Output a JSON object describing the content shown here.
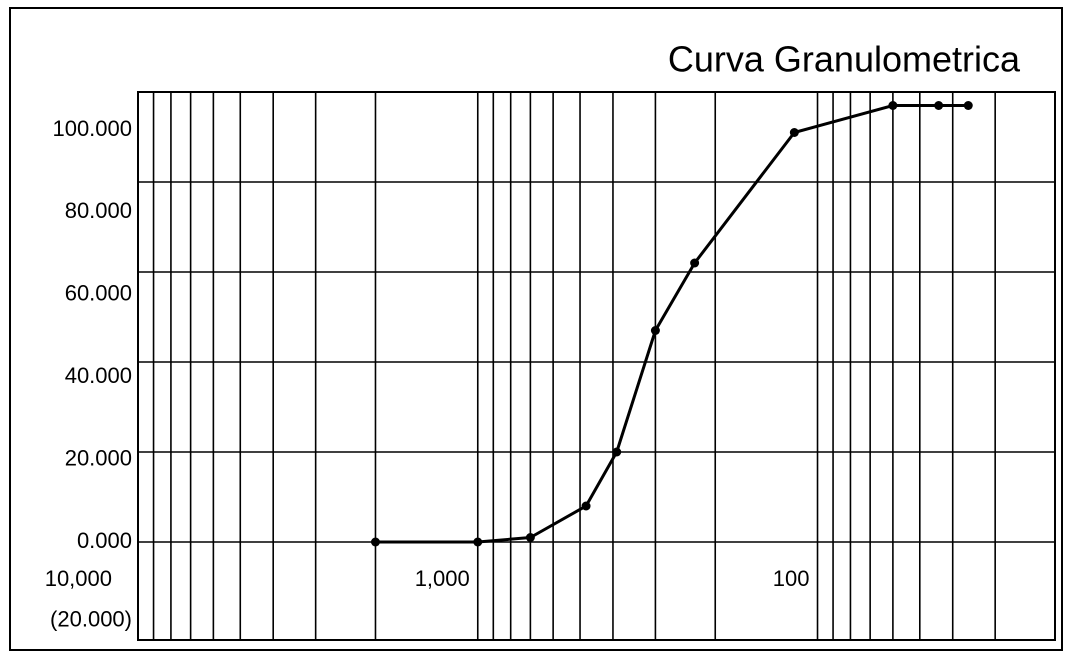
{
  "chart_data": {
    "type": "line",
    "title": "Curva Granulometrica",
    "x": [
      2000,
      1000,
      700,
      480,
      390,
      300,
      230,
      117,
      60,
      44,
      36
    ],
    "series": [
      {
        "color": "#000000",
        "values": [
          0,
          0,
          1,
          8,
          20,
          47,
          62,
          91,
          97,
          97,
          97
        ]
      }
    ],
    "xscale": "log",
    "xreversed": true,
    "xlim": [
      10000,
      20
    ],
    "xticks": [
      {
        "value": 10000,
        "label": "10,000"
      },
      {
        "value": 1000,
        "label": "1,000"
      },
      {
        "value": 100,
        "label": "100"
      }
    ],
    "ylim": [
      -20,
      100
    ],
    "yticks": [
      {
        "value": 100,
        "label": "100.000"
      },
      {
        "value": 80,
        "label": "80.000"
      },
      {
        "value": 60,
        "label": "60.000"
      },
      {
        "value": 40,
        "label": "40.000"
      },
      {
        "value": 20,
        "label": "20.000"
      },
      {
        "value": 0,
        "label": "0.000"
      },
      {
        "value": -20,
        "label": "(20.000)"
      }
    ],
    "grid": true,
    "x_minor_grid": true
  }
}
